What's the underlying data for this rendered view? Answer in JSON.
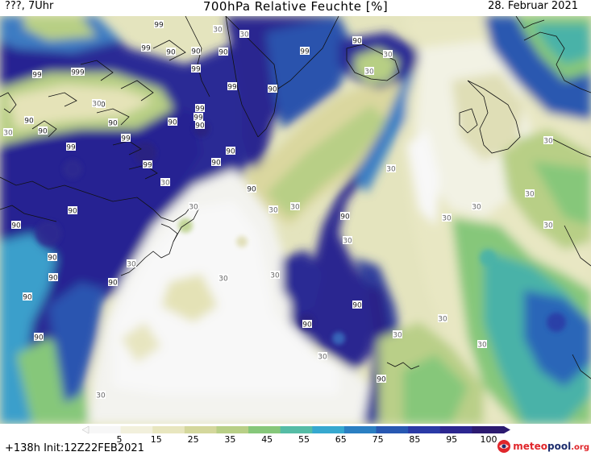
{
  "header": {
    "left": "???, 7Uhr",
    "title": "700hPa Relative Feuchte [%]",
    "right": "28. Februar 2021"
  },
  "footer": {
    "run": "+138h  Init:12Z22FEB2021"
  },
  "logo": {
    "part1": "meteo",
    "part2": "pool",
    "part3": ".org"
  },
  "legend": {
    "ticks": [
      "5",
      "15",
      "25",
      "35",
      "45",
      "55",
      "65",
      "75",
      "85",
      "95",
      "100"
    ],
    "colors": [
      "#f7f7f7",
      "#f2f0dc",
      "#e8e6bf",
      "#d4d79c",
      "#b8cf86",
      "#86c77a",
      "#55bca5",
      "#36a8cf",
      "#2a7fc2",
      "#2858b2",
      "#2a3aa6",
      "#2c2690",
      "#2c1a70"
    ]
  },
  "contour_labels": [
    "99",
    "99",
    "90",
    "90",
    "99",
    "90",
    "99",
    "90",
    "90",
    "99",
    "90",
    "99",
    "90",
    "99",
    "99",
    "90",
    "90",
    "99",
    "90",
    "99",
    "90",
    "90",
    "90",
    "90",
    "90",
    "90",
    "90",
    "90",
    "90",
    "90",
    "90",
    "90",
    "90",
    "90",
    "99",
    "90",
    "99",
    "90",
    "30",
    "30",
    "30",
    "30",
    "30",
    "30",
    "30",
    "30",
    "30",
    "30",
    "30",
    "30",
    "30",
    "30",
    "30",
    "30",
    "30",
    "30",
    "30",
    "30",
    "30",
    "30",
    "30",
    "30",
    "30"
  ]
}
